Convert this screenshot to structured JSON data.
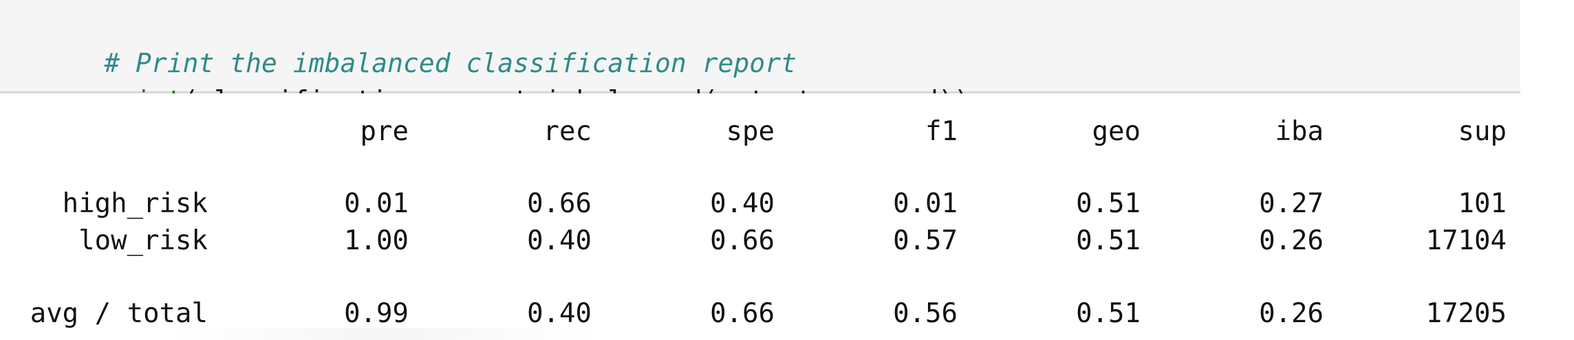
{
  "code_cell": {
    "comment": "# Print the imbalanced classification report",
    "line2": {
      "function": "print",
      "rest": "(classification_report_imbalanced(y_test, y_pred))"
    }
  },
  "report": {
    "headers": [
      "pre",
      "rec",
      "spe",
      "f1",
      "geo",
      "iba",
      "sup"
    ],
    "rows": [
      {
        "label": "high_risk",
        "values": [
          "0.01",
          "0.66",
          "0.40",
          "0.01",
          "0.51",
          "0.27",
          "101"
        ]
      },
      {
        "label": "low_risk",
        "values": [
          "1.00",
          "0.40",
          "0.66",
          "0.57",
          "0.51",
          "0.26",
          "17104"
        ]
      },
      {
        "label": "avg / total",
        "values": [
          "0.99",
          "0.40",
          "0.66",
          "0.56",
          "0.51",
          "0.26",
          "17205"
        ]
      }
    ]
  },
  "colors": {
    "comment": "#2f8b89",
    "builtin": "#008000",
    "cell_background": "#f5f5f5",
    "text": "#111111"
  }
}
